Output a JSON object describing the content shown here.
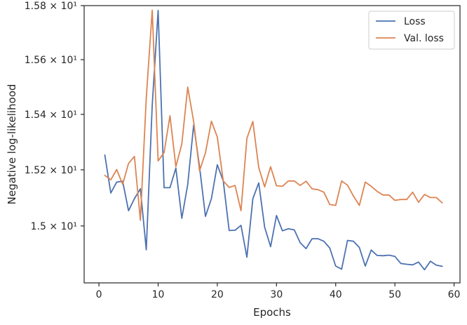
{
  "chart_data": {
    "type": "line",
    "title": "",
    "xlabel": "Epochs",
    "ylabel": "Negative log-likelihood",
    "xlim": [
      -2.5,
      61
    ],
    "ylim": [
      14.8,
      15.8
    ],
    "y_scale": "log",
    "x_ticks": [
      0,
      10,
      20,
      30,
      40,
      50,
      60
    ],
    "y_ticks": [
      {
        "value": 15.0,
        "label": "1.5 × 10¹"
      },
      {
        "value": 15.2,
        "label": "1.52 × 10¹"
      },
      {
        "value": 15.4,
        "label": "1.54 × 10¹"
      },
      {
        "value": 15.6,
        "label": "1.56 × 10¹"
      },
      {
        "value": 15.8,
        "label": "1.58 × 10¹"
      }
    ],
    "grid": false,
    "legend_position": "top-right",
    "x": [
      1,
      2,
      3,
      4,
      5,
      6,
      7,
      8,
      9,
      10,
      11,
      12,
      13,
      14,
      15,
      16,
      17,
      18,
      19,
      20,
      21,
      22,
      23,
      24,
      25,
      26,
      27,
      28,
      29,
      30,
      31,
      32,
      33,
      34,
      35,
      36,
      37,
      38,
      39,
      40,
      41,
      42,
      43,
      44,
      45,
      46,
      47,
      48,
      49,
      50,
      51,
      52,
      53,
      54,
      55,
      56,
      57,
      58
    ],
    "series": [
      {
        "name": "Loss",
        "color": "#4c72b0",
        "values": [
          15.253,
          15.117,
          15.156,
          15.159,
          15.054,
          15.097,
          15.132,
          14.916,
          15.433,
          15.782,
          15.136,
          15.136,
          15.206,
          15.027,
          15.147,
          15.362,
          15.21,
          15.034,
          15.097,
          15.218,
          15.16,
          14.984,
          14.985,
          15.002,
          14.89,
          15.097,
          15.153,
          14.996,
          14.927,
          15.037,
          14.983,
          14.99,
          14.986,
          14.941,
          14.92,
          14.955,
          14.955,
          14.946,
          14.922,
          14.859,
          14.848,
          14.949,
          14.946,
          14.924,
          14.859,
          14.915,
          14.896,
          14.895,
          14.897,
          14.893,
          14.868,
          14.865,
          14.863,
          14.873,
          14.846,
          14.876,
          14.862,
          14.858
        ]
      },
      {
        "name": "Val. loss",
        "color": "#dd8452",
        "values": [
          15.18,
          15.164,
          15.201,
          15.148,
          15.223,
          15.248,
          15.02,
          15.46,
          15.783,
          15.232,
          15.262,
          15.395,
          15.211,
          15.293,
          15.499,
          15.374,
          15.196,
          15.261,
          15.375,
          15.318,
          15.16,
          15.137,
          15.144,
          15.054,
          15.313,
          15.374,
          15.208,
          15.139,
          15.211,
          15.143,
          15.141,
          15.16,
          15.16,
          15.144,
          15.159,
          15.132,
          15.129,
          15.12,
          15.076,
          15.073,
          15.16,
          15.145,
          15.106,
          15.073,
          15.156,
          15.141,
          15.123,
          15.11,
          15.11,
          15.091,
          15.094,
          15.094,
          15.12,
          15.084,
          15.112,
          15.101,
          15.101,
          15.082
        ]
      }
    ]
  }
}
